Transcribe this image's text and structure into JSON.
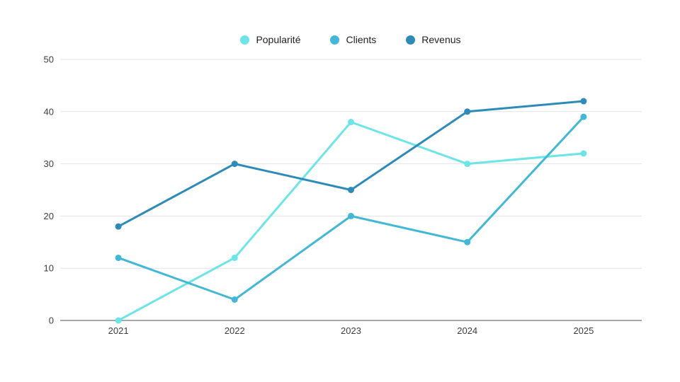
{
  "page": {
    "background": "#ffffff"
  },
  "legend": {
    "position": "top-center",
    "items": [
      {
        "label": "Popularité",
        "color": "#6CE5E8"
      },
      {
        "label": "Clients",
        "color": "#41B8D5"
      },
      {
        "label": "Revenus",
        "color": "#2D8BBA"
      }
    ]
  },
  "chart_data": {
    "type": "line",
    "title": "",
    "xlabel": "",
    "ylabel": "",
    "categories": [
      "2021",
      "2022",
      "2023",
      "2024",
      "2025"
    ],
    "series": [
      {
        "name": "Popularité",
        "color": "#6CE5E8",
        "values": [
          0,
          12,
          38,
          30,
          32
        ]
      },
      {
        "name": "Clients",
        "color": "#41B8D5",
        "values": [
          12,
          4,
          20,
          15,
          39
        ]
      },
      {
        "name": "Revenus",
        "color": "#2D8BBA",
        "values": [
          18,
          30,
          25,
          40,
          42
        ]
      }
    ],
    "ylim": [
      0,
      50
    ],
    "yticks": [
      0,
      10,
      20,
      30,
      40,
      50
    ],
    "grid": true,
    "legend_position": "top-center",
    "style": {
      "gridline_color": "#e3e3e3",
      "axis_line_color": "#a8a8a8",
      "tick_label_color": "#3c3c3c",
      "line_width": 3,
      "point_radius": 4.5
    }
  }
}
